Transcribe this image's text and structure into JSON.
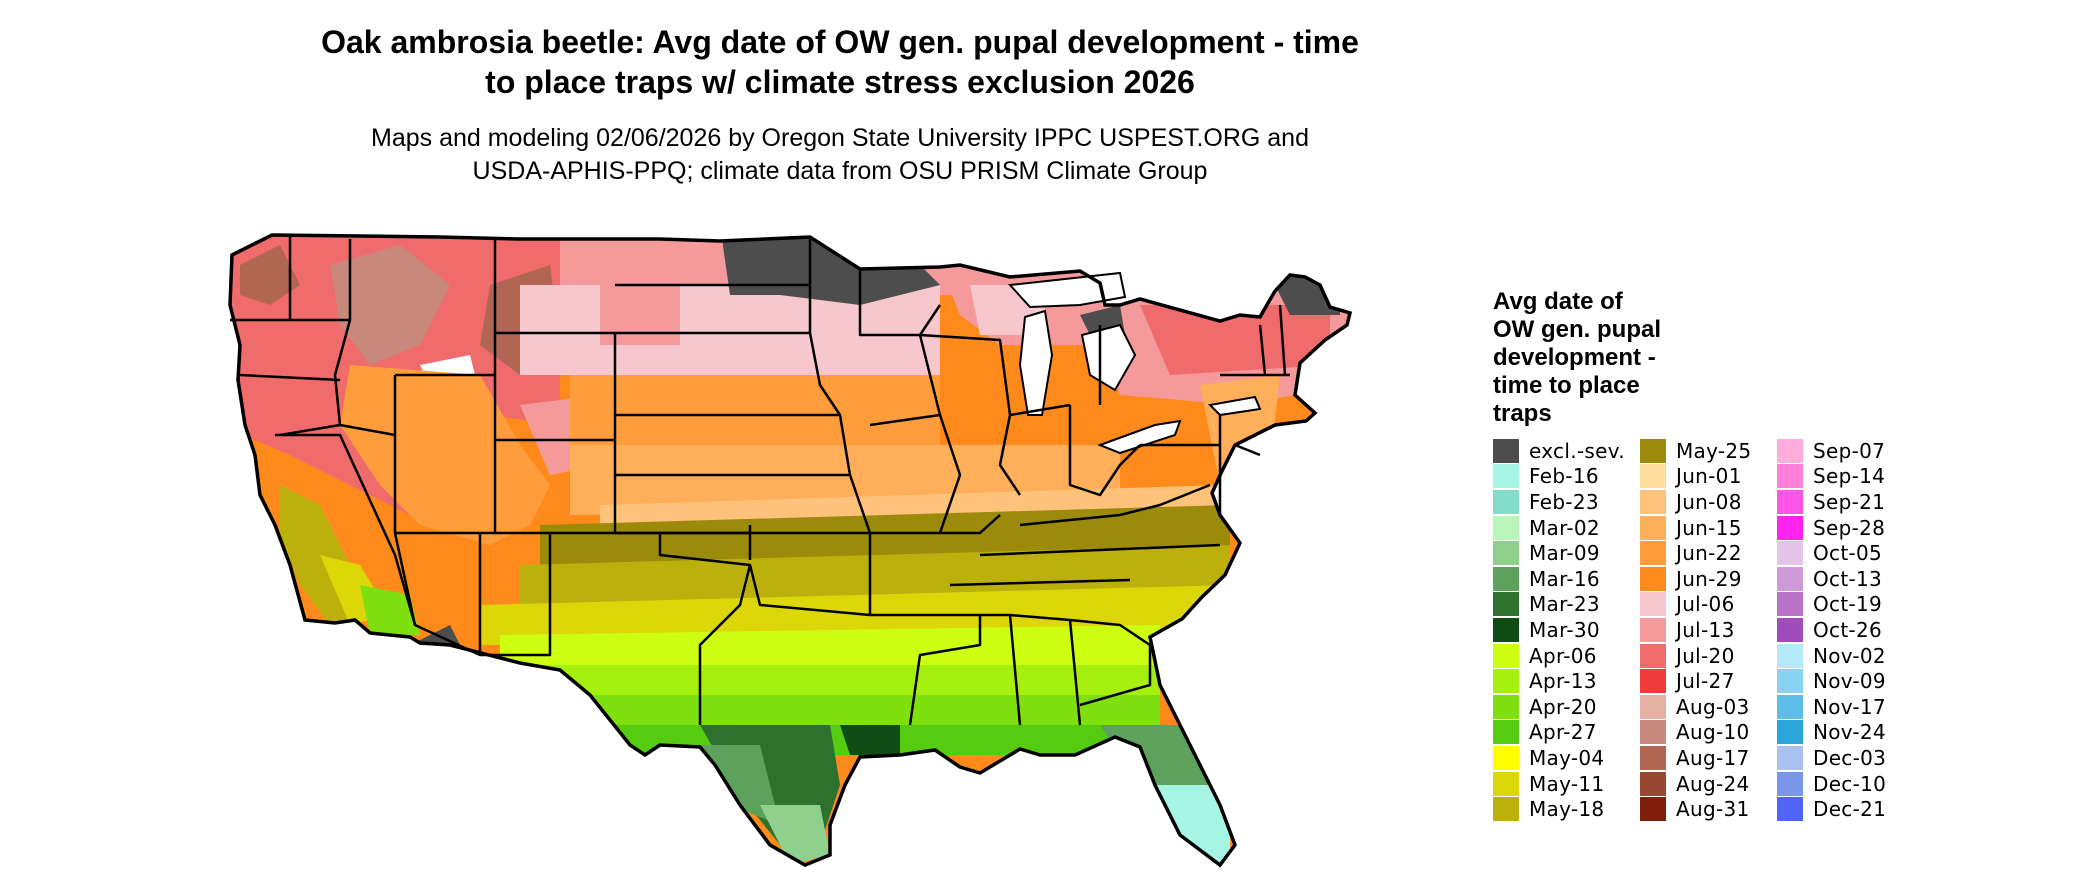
{
  "title": {
    "line1": "Oak ambrosia beetle: Avg date of OW gen. pupal development - time",
    "line2": "to place traps w/ climate stress exclusion 2026"
  },
  "subtitle": {
    "line1": "Maps and modeling 02/06/2026 by Oregon State University IPPC USPEST.ORG and",
    "line2": "USDA-APHIS-PPQ; climate data from OSU PRISM Climate Group"
  },
  "legend": {
    "title_lines": [
      "Avg date of",
      "OW gen. pupal",
      "development -",
      "time to place",
      "traps"
    ],
    "columns": [
      [
        {
          "label": "excl.-sev.",
          "color": "#4d4d4d"
        },
        {
          "label": "Feb-16",
          "color": "#a6f5e4"
        },
        {
          "label": "Feb-23",
          "color": "#83dcc7"
        },
        {
          "label": "Mar-02",
          "color": "#b9f5b9"
        },
        {
          "label": "Mar-09",
          "color": "#8fd08f"
        },
        {
          "label": "Mar-16",
          "color": "#5da15d"
        },
        {
          "label": "Mar-23",
          "color": "#2e702e"
        },
        {
          "label": "Mar-30",
          "color": "#0f4d14"
        },
        {
          "label": "Apr-06",
          "color": "#ccff11"
        },
        {
          "label": "Apr-13",
          "color": "#a6f00f"
        },
        {
          "label": "Apr-20",
          "color": "#7fe010"
        },
        {
          "label": "Apr-27",
          "color": "#55cc0f"
        },
        {
          "label": "May-04",
          "color": "#ffff00"
        },
        {
          "label": "May-11",
          "color": "#ddd609"
        },
        {
          "label": "May-18",
          "color": "#bcb00c"
        }
      ],
      [
        {
          "label": "May-25",
          "color": "#9c8a0b"
        },
        {
          "label": "Jun-01",
          "color": "#ffdd9b"
        },
        {
          "label": "Jun-08",
          "color": "#ffc27a"
        },
        {
          "label": "Jun-15",
          "color": "#ffae5a"
        },
        {
          "label": "Jun-22",
          "color": "#ff9d3c"
        },
        {
          "label": "Jun-29",
          "color": "#ff8a1c"
        },
        {
          "label": "Jul-06",
          "color": "#f6c7cc"
        },
        {
          "label": "Jul-13",
          "color": "#f49a9a"
        },
        {
          "label": "Jul-20",
          "color": "#f06b6b"
        },
        {
          "label": "Jul-27",
          "color": "#f03c3c"
        },
        {
          "label": "Aug-03",
          "color": "#e6b2a6"
        },
        {
          "label": "Aug-10",
          "color": "#c8887c"
        },
        {
          "label": "Aug-17",
          "color": "#b06652"
        },
        {
          "label": "Aug-24",
          "color": "#984733"
        },
        {
          "label": "Aug-31",
          "color": "#801e0c"
        }
      ],
      [
        {
          "label": "Sep-07",
          "color": "#ffaedc"
        },
        {
          "label": "Sep-14",
          "color": "#ff80da"
        },
        {
          "label": "Sep-21",
          "color": "#ff55e6"
        },
        {
          "label": "Sep-28",
          "color": "#ff22f0"
        },
        {
          "label": "Oct-05",
          "color": "#e6c3ea"
        },
        {
          "label": "Oct-13",
          "color": "#cc9ad6"
        },
        {
          "label": "Oct-19",
          "color": "#b872c8"
        },
        {
          "label": "Oct-26",
          "color": "#a04cbb"
        },
        {
          "label": "Nov-02",
          "color": "#b4eaf8"
        },
        {
          "label": "Nov-09",
          "color": "#8ad3f0"
        },
        {
          "label": "Nov-17",
          "color": "#5ebde6"
        },
        {
          "label": "Nov-24",
          "color": "#2aa4d9"
        },
        {
          "label": "Dec-03",
          "color": "#a9c1ee"
        },
        {
          "label": "Dec-10",
          "color": "#7b95ea"
        },
        {
          "label": "Dec-21",
          "color": "#5064f5"
        }
      ]
    ]
  }
}
